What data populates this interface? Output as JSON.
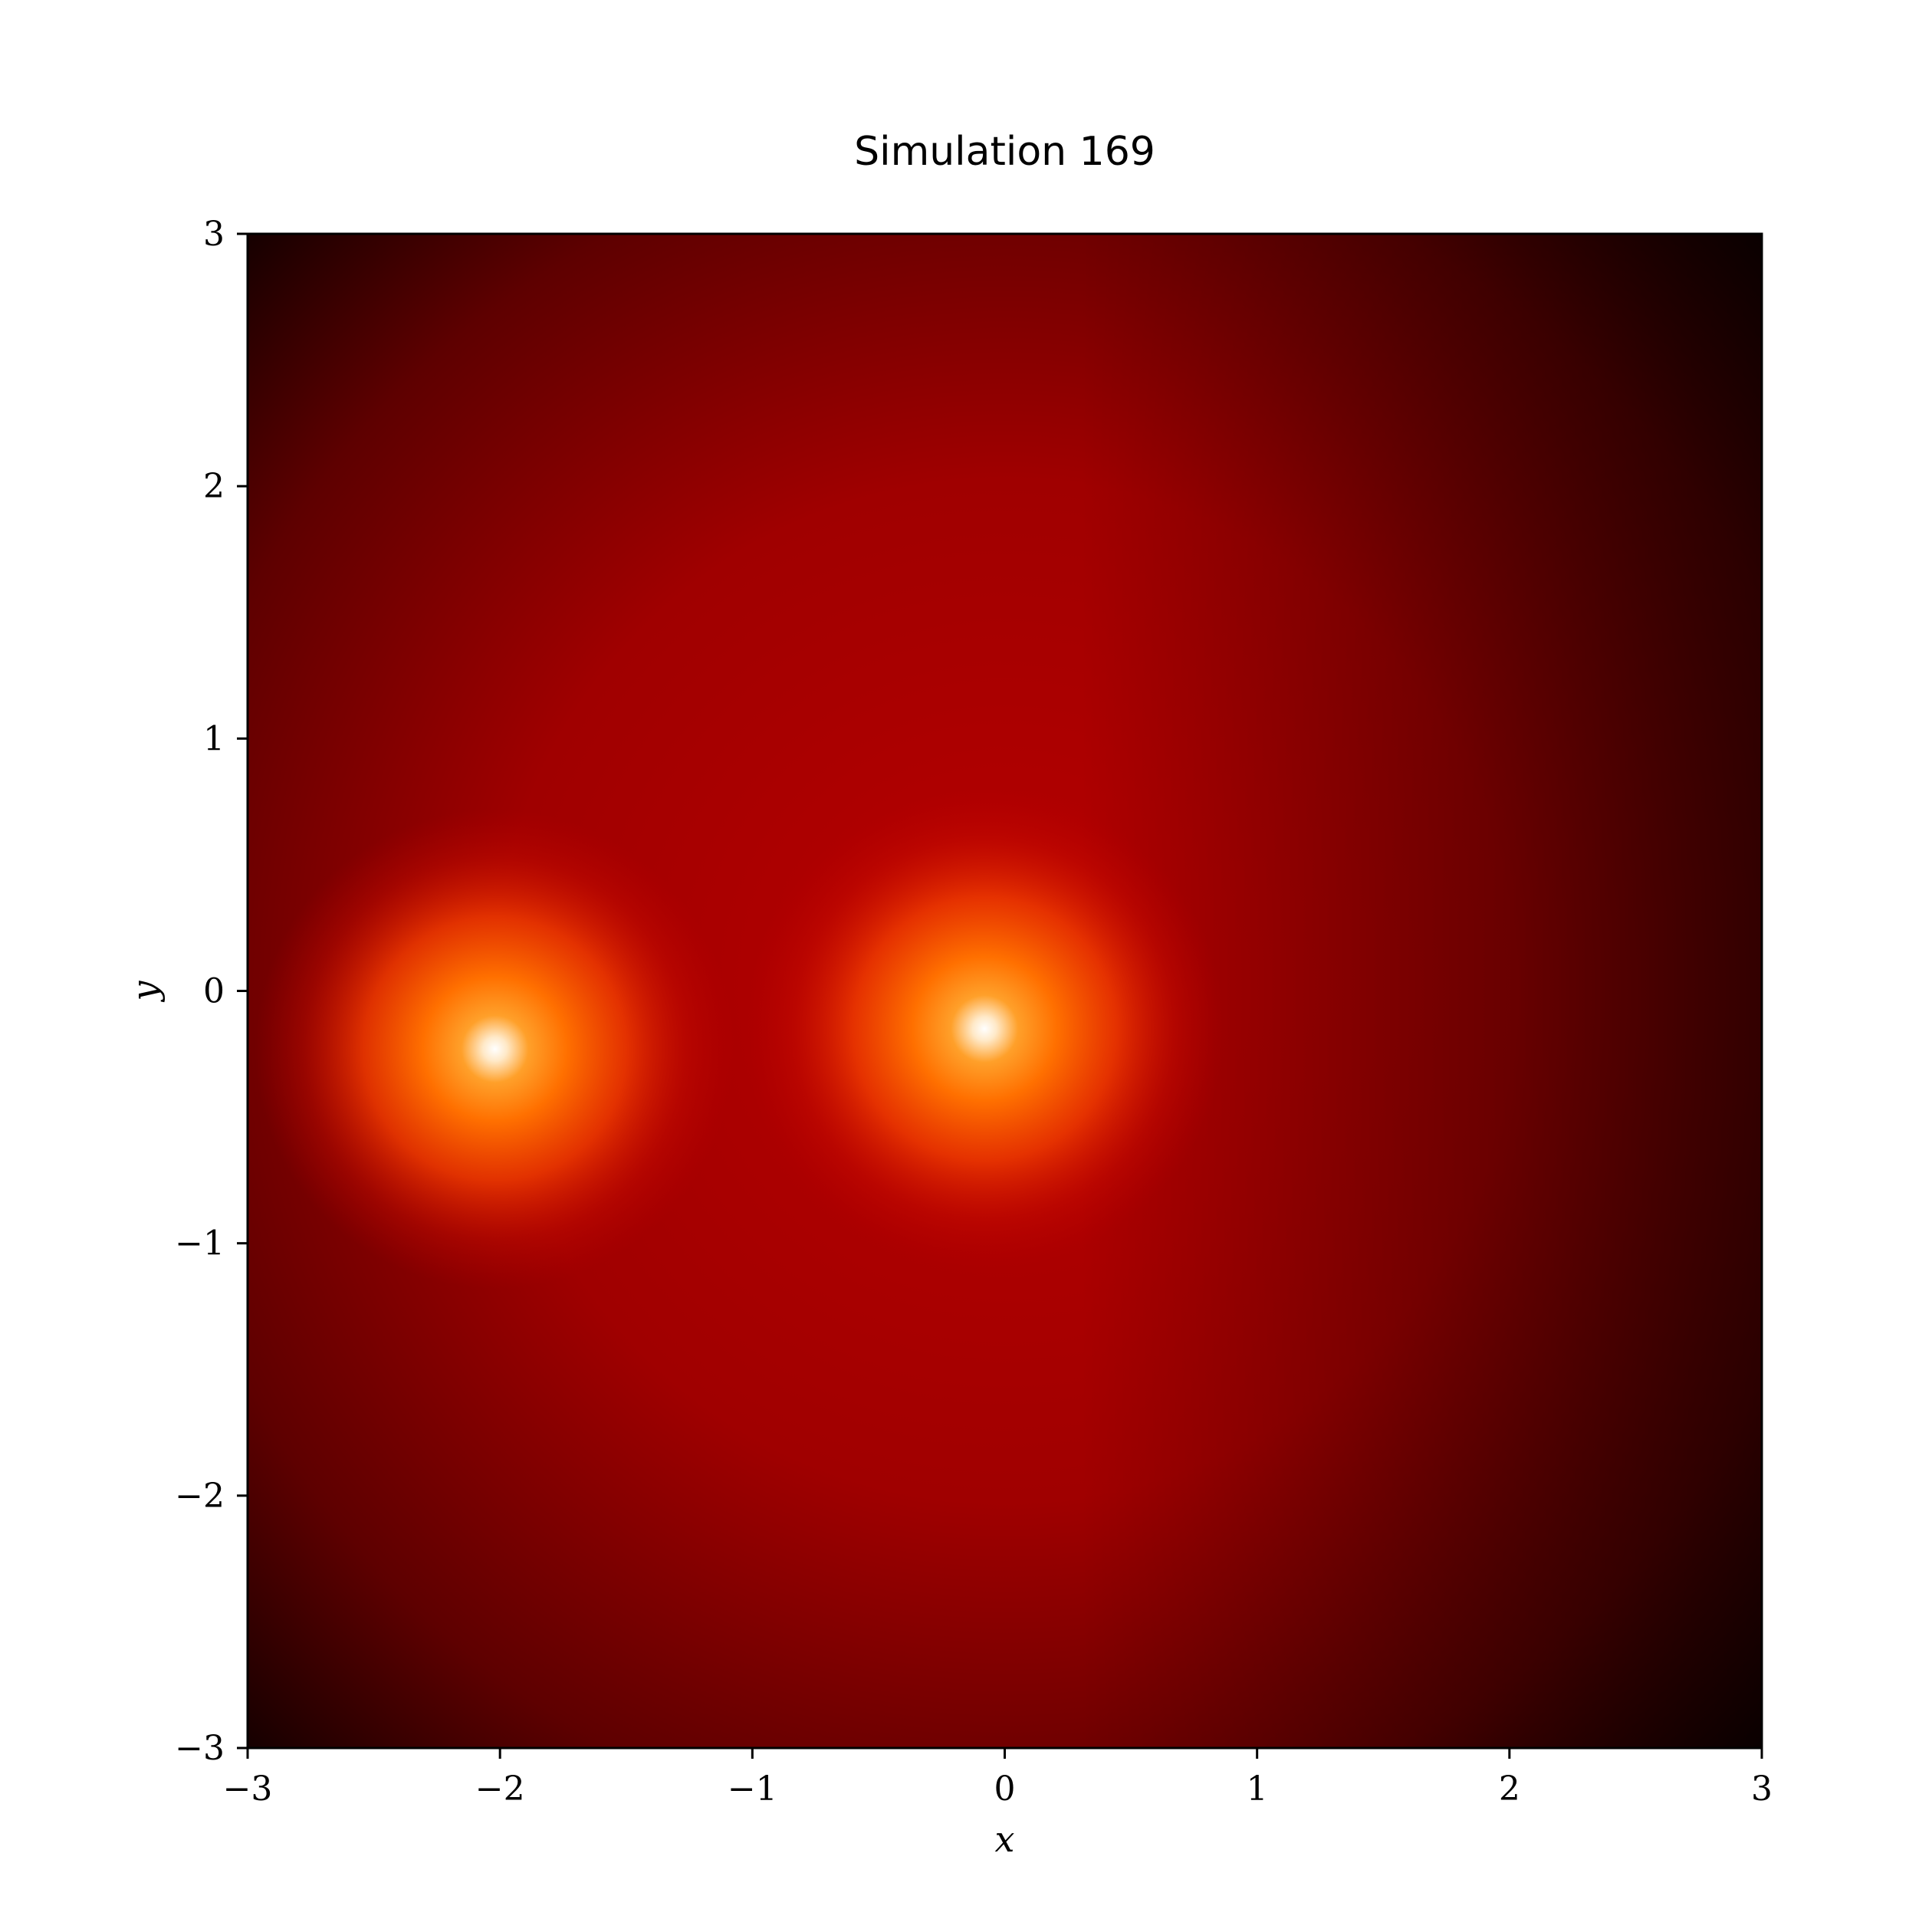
{
  "chart_data": {
    "type": "heatmap",
    "title": "Simulation 169",
    "xlabel": "x",
    "ylabel": "y",
    "xlim": [
      -3,
      3
    ],
    "ylim": [
      -3,
      3
    ],
    "x_ticks": [
      -3,
      -2,
      -1,
      0,
      1,
      2,
      3
    ],
    "y_ticks": [
      -3,
      -2,
      -1,
      0,
      1,
      2,
      3
    ],
    "x_tick_labels": [
      "−3",
      "−2",
      "−1",
      "0",
      "1",
      "2",
      "3"
    ],
    "y_tick_labels": [
      "−3",
      "−2",
      "−1",
      "0",
      "1",
      "2",
      "3"
    ],
    "colormap": "gist_heat",
    "colors": [
      "#000000",
      "#7a0000",
      "#c40000",
      "#ff5a00",
      "#ff9900",
      "#ffffff"
    ],
    "grid": false,
    "peaks": [
      {
        "x": -2.02,
        "y": -0.23
      },
      {
        "x": -0.08,
        "y": -0.15
      }
    ]
  }
}
